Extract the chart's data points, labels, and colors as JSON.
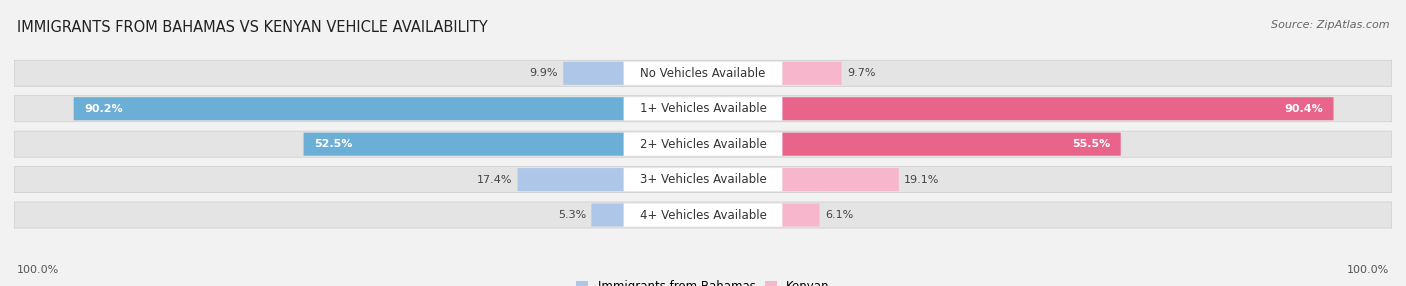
{
  "title": "IMMIGRANTS FROM BAHAMAS VS KENYAN VEHICLE AVAILABILITY",
  "source": "Source: ZipAtlas.com",
  "categories": [
    "No Vehicles Available",
    "1+ Vehicles Available",
    "2+ Vehicles Available",
    "3+ Vehicles Available",
    "4+ Vehicles Available"
  ],
  "bahamas_values": [
    9.9,
    90.2,
    52.5,
    17.4,
    5.3
  ],
  "kenyan_values": [
    9.7,
    90.4,
    55.5,
    19.1,
    6.1
  ],
  "bahamas_color_light": "#aec6e8",
  "bahamas_color_dark": "#6baed6",
  "kenyan_color_light": "#f7b6cc",
  "kenyan_color_dark": "#e8648a",
  "bahamas_label": "Immigrants from Bahamas",
  "kenyan_label": "Kenyan",
  "background_color": "#f2f2f2",
  "bar_bg_color": "#e4e4e4",
  "title_fontsize": 10.5,
  "label_fontsize": 8.5,
  "value_fontsize": 8.0,
  "bottom_label": "100.0%"
}
